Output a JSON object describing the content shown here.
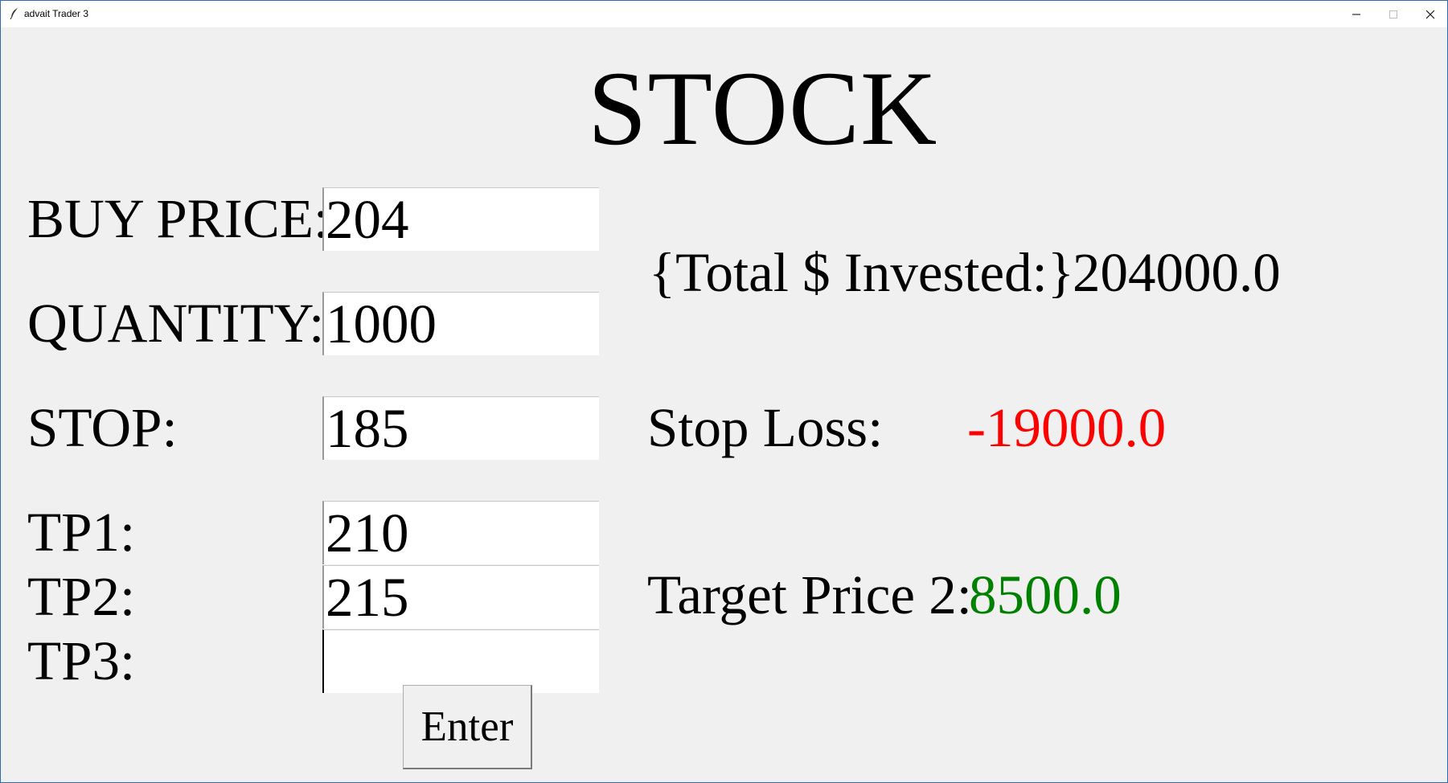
{
  "window": {
    "title": "advait Trader 3",
    "icon": "feather-icon",
    "controls": [
      "minimize-icon",
      "maximize-icon",
      "close-icon"
    ]
  },
  "heading": "STOCK",
  "form": {
    "buy_price": {
      "label": "BUY PRICE:",
      "value": "204"
    },
    "quantity": {
      "label": "QUANTITY:",
      "value": "1000"
    },
    "stop": {
      "label": "STOP:",
      "value": "185"
    },
    "tp1": {
      "label": "TP1:",
      "value": "210"
    },
    "tp2": {
      "label": "TP2:",
      "value": "215"
    },
    "tp3": {
      "label": "TP3:",
      "value": ""
    },
    "enter_label": "Enter"
  },
  "results": {
    "total_invested_label": "{Total $ Invested:}",
    "total_invested_value": "204000.0",
    "stop_loss_label": "Stop Loss:",
    "stop_loss_value": "-19000.0",
    "target_price_label": "Target Price 2:",
    "target_price_value": "8500.0"
  },
  "colors": {
    "loss": "#ff0000",
    "gain": "#008000",
    "background": "#f0f0f0"
  }
}
